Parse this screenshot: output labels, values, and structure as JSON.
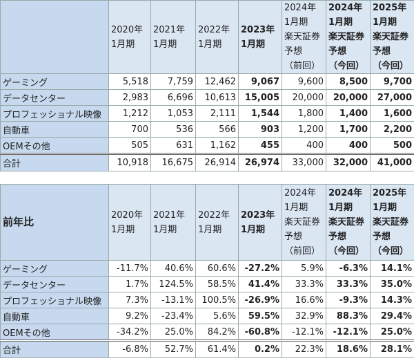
{
  "bold_columns": [
    3,
    5,
    6
  ],
  "tables": [
    {
      "headers": [
        "2020年\n1月期",
        "2021年\n1月期",
        "2022年\n1月期",
        "2023年\n1月期",
        "2024年\n1月期\n楽天証券\n予想\n（前回）",
        "2024年\n1月期\n楽天証券\n予想\n（今回）",
        "2025年\n1月期\n楽天証券\n予想\n（今回）"
      ],
      "rows": [
        {
          "label": "ゲーミング",
          "values": [
            "5,518",
            "7,759",
            "12,462",
            "9,067",
            "9,600",
            "8,500",
            "9,700"
          ]
        },
        {
          "label": "データセンター",
          "values": [
            "2,983",
            "6,696",
            "10,613",
            "15,005",
            "20,000",
            "20,000",
            "27,000"
          ]
        },
        {
          "label": "プロフェッショナル映像",
          "values": [
            "1,212",
            "1,053",
            "2,111",
            "1,544",
            "1,800",
            "1,400",
            "1,600"
          ]
        },
        {
          "label": "自動車",
          "values": [
            "700",
            "536",
            "566",
            "903",
            "1,200",
            "1,700",
            "2,200"
          ]
        },
        {
          "label": "OEMその他",
          "values": [
            "505",
            "631",
            "1,162",
            "455",
            "400",
            "400",
            "500"
          ]
        }
      ],
      "total": {
        "label": "合計",
        "values": [
          "10,918",
          "16,675",
          "26,914",
          "26,974",
          "33,000",
          "32,000",
          "41,000"
        ]
      }
    },
    {
      "corner": "前年比",
      "headers": [
        "2020年\n1月期",
        "2021年\n1月期",
        "2022年\n1月期",
        "2023年\n1月期",
        "2024年\n1月期\n楽天証券\n予想\n（前回）",
        "2024年\n1月期\n楽天証券\n予想\n（今回）",
        "2025年\n1月期\n楽天証券\n予想\n（今回）"
      ],
      "rows": [
        {
          "label": "ゲーミング",
          "values": [
            "-11.7%",
            "40.6%",
            "60.6%",
            "-27.2%",
            "5.9%",
            "-6.3%",
            "14.1%"
          ]
        },
        {
          "label": "データセンター",
          "values": [
            "1.7%",
            "124.5%",
            "58.5%",
            "41.4%",
            "33.3%",
            "33.3%",
            "35.0%"
          ]
        },
        {
          "label": "プロフェッショナル映像",
          "values": [
            "7.3%",
            "-13.1%",
            "100.5%",
            "-26.9%",
            "16.6%",
            "-9.3%",
            "14.3%"
          ]
        },
        {
          "label": "自動車",
          "values": [
            "9.2%",
            "-23.4%",
            "5.6%",
            "59.5%",
            "32.9%",
            "88.3%",
            "29.4%"
          ]
        },
        {
          "label": "OEMその他",
          "values": [
            "-34.2%",
            "25.0%",
            "84.2%",
            "-60.8%",
            "-12.1%",
            "-12.1%",
            "25.0%"
          ]
        }
      ],
      "total": {
        "label": "合計",
        "values": [
          "-6.8%",
          "52.7%",
          "61.4%",
          "0.2%",
          "22.3%",
          "18.6%",
          "28.1%"
        ]
      }
    }
  ]
}
